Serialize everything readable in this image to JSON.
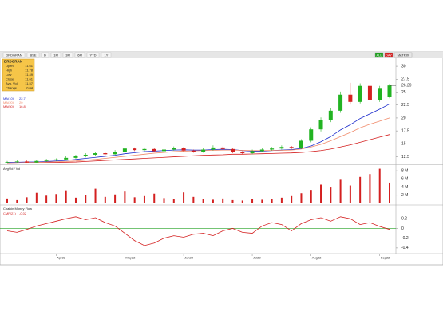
{
  "toolbar": {
    "items": [
      "DRDGRAN",
      "BSE",
      "D",
      "1M",
      "3M",
      "6M",
      "YTD",
      "1Y"
    ],
    "right": [
      "ALL",
      "DAY",
      "MATRIX"
    ]
  },
  "info_box": {
    "title": "DRDGRAN",
    "rows": [
      [
        "Open",
        "11.61"
      ],
      [
        "High",
        "11.78"
      ],
      [
        "Low",
        "11.49"
      ],
      [
        "Close",
        "11.61"
      ],
      [
        "Avg. Vol",
        "11.57"
      ],
      [
        "Change",
        "0.04"
      ]
    ]
  },
  "chart_data": [
    {
      "type": "candlestick",
      "grid": false,
      "open": [
        11.4,
        11.5,
        11.6,
        11.4,
        11.7,
        11.9,
        12.0,
        12.3,
        12.6,
        12.9,
        13.2,
        13.0,
        13.5,
        14.1,
        13.8,
        14.0,
        13.6,
        13.9,
        14.2,
        13.7,
        13.5,
        13.9,
        14.3,
        14.0,
        13.4,
        13.2,
        13.6,
        13.9,
        14.1,
        14.4,
        14.2,
        15.6,
        17.8,
        19.6,
        21.4,
        24.5,
        23.1,
        26.2,
        23.4,
        24.0
      ],
      "high": [
        11.7,
        11.9,
        11.8,
        11.9,
        12.1,
        12.2,
        12.6,
        12.9,
        13.2,
        13.5,
        13.4,
        13.8,
        14.6,
        14.3,
        14.3,
        14.2,
        14.2,
        14.5,
        14.4,
        13.9,
        14.2,
        14.7,
        14.5,
        14.2,
        13.6,
        13.9,
        14.2,
        14.4,
        14.7,
        14.6,
        15.9,
        18.2,
        20.1,
        21.9,
        25.1,
        26.8,
        26.7,
        26.6,
        26.2,
        26.6
      ],
      "low": [
        11.2,
        11.3,
        11.2,
        11.2,
        11.5,
        11.7,
        11.8,
        12.1,
        12.4,
        12.7,
        12.8,
        12.9,
        13.3,
        13.6,
        13.6,
        13.4,
        13.4,
        13.7,
        13.5,
        13.3,
        13.3,
        13.7,
        13.8,
        13.2,
        13.0,
        13.0,
        13.4,
        13.7,
        13.9,
        14.0,
        14.0,
        15.3,
        17.4,
        19.2,
        21.0,
        22.6,
        22.8,
        23.0,
        23.1,
        23.8
      ],
      "close": [
        11.5,
        11.6,
        11.4,
        11.7,
        11.9,
        12.0,
        12.3,
        12.6,
        12.9,
        13.2,
        13.0,
        13.5,
        14.1,
        13.8,
        14.0,
        13.6,
        13.9,
        14.2,
        13.7,
        13.5,
        13.9,
        14.3,
        14.0,
        13.4,
        13.2,
        13.6,
        13.9,
        14.1,
        14.4,
        14.2,
        15.6,
        17.8,
        19.6,
        21.4,
        24.5,
        23.1,
        26.2,
        23.4,
        25.8,
        26.29
      ],
      "up_color": "#22b322",
      "down_color": "#d42020",
      "series": [
        {
          "name": "MA(10)",
          "color": "#1a2acc",
          "values": [
            11.4,
            11.45,
            11.5,
            11.5,
            11.6,
            11.7,
            11.8,
            12.0,
            12.2,
            12.4,
            12.6,
            12.8,
            13.1,
            13.3,
            13.5,
            13.6,
            13.7,
            13.8,
            13.85,
            13.8,
            13.8,
            13.9,
            13.95,
            13.9,
            13.7,
            13.6,
            13.6,
            13.7,
            13.8,
            13.9,
            14.1,
            14.6,
            15.4,
            16.4,
            17.7,
            18.7,
            19.9,
            20.8,
            21.7,
            22.7
          ]
        },
        {
          "name": "MA(20)",
          "color": "#f08a6a",
          "values": [
            11.3,
            11.35,
            11.4,
            11.4,
            11.5,
            11.55,
            11.6,
            11.7,
            11.85,
            12.0,
            12.2,
            12.4,
            12.6,
            12.8,
            13.0,
            13.2,
            13.35,
            13.5,
            13.6,
            13.65,
            13.7,
            13.75,
            13.8,
            13.8,
            13.75,
            13.7,
            13.7,
            13.72,
            13.75,
            13.8,
            14.0,
            14.4,
            14.9,
            15.6,
            16.4,
            17.2,
            18.1,
            18.8,
            19.4,
            20.0
          ]
        },
        {
          "name": "MA(50)",
          "color": "#d42020",
          "values": [
            11.2,
            11.25,
            11.3,
            11.3,
            11.35,
            11.4,
            11.45,
            11.5,
            11.6,
            11.7,
            11.8,
            11.9,
            12.0,
            12.1,
            12.2,
            12.3,
            12.4,
            12.5,
            12.6,
            12.7,
            12.8,
            12.85,
            12.9,
            13.0,
            13.0,
            13.05,
            13.1,
            13.15,
            13.2,
            13.25,
            13.35,
            13.5,
            13.7,
            14.0,
            14.4,
            14.8,
            15.3,
            15.8,
            16.3,
            16.8
          ]
        }
      ],
      "ylim": [
        11.2,
        31.4
      ],
      "yticks": [
        12.5,
        15,
        17.5,
        20,
        22.5,
        25,
        27.5,
        30
      ]
    },
    {
      "type": "bar",
      "title": "AvgVol / Vol",
      "color": "#d42020",
      "values": [
        1200000,
        800000,
        1500000,
        2600000,
        1900000,
        2300000,
        3200000,
        1400000,
        2000000,
        3600000,
        1600000,
        2200000,
        2900000,
        1500000,
        1800000,
        2400000,
        1300000,
        1100000,
        2700000,
        1600000,
        1000000,
        900000,
        1200000,
        800000,
        700000,
        1000000,
        900000,
        1100000,
        1400000,
        1800000,
        2500000,
        3300000,
        4600000,
        3900000,
        5800000,
        4400000,
        6500000,
        7200000,
        8500000,
        5100000
      ],
      "ylim": [
        0,
        9200000
      ],
      "yticks": [
        {
          "value": 2000000,
          "label": "2 M"
        },
        {
          "value": 4000000,
          "label": "4 M"
        },
        {
          "value": 6000000,
          "label": "6 M"
        },
        {
          "value": 8000000,
          "label": "8 M"
        }
      ]
    },
    {
      "type": "line",
      "title": "Chaikin Money Flow",
      "series": [
        {
          "name": "CMF(21)",
          "color": "#d42020",
          "values": [
            -0.05,
            -0.08,
            -0.02,
            0.05,
            0.1,
            0.15,
            0.2,
            0.24,
            0.18,
            0.22,
            0.12,
            0.05,
            -0.1,
            -0.25,
            -0.35,
            -0.3,
            -0.2,
            -0.15,
            -0.18,
            -0.12,
            -0.1,
            -0.15,
            -0.05,
            0.0,
            -0.08,
            -0.1,
            0.05,
            0.12,
            0.08,
            -0.05,
            0.1,
            0.18,
            0.22,
            0.15,
            0.24,
            0.2,
            0.08,
            0.12,
            0.04,
            -0.02
          ]
        }
      ],
      "zero_color": "#22a022",
      "categories": [
        null,
        null,
        null,
        null,
        null,
        "Apr22",
        null,
        null,
        null,
        null,
        null,
        null,
        "May22",
        null,
        null,
        null,
        null,
        null,
        "Jun22",
        null,
        null,
        null,
        null,
        null,
        null,
        "Jul22",
        null,
        null,
        null,
        null,
        null,
        "Aug22",
        null,
        null,
        null,
        null,
        null,
        null,
        "Sep22",
        null
      ],
      "ylim": [
        -0.5,
        0.45
      ],
      "yticks": [
        -0.4,
        -0.2,
        0,
        0.2
      ]
    }
  ]
}
